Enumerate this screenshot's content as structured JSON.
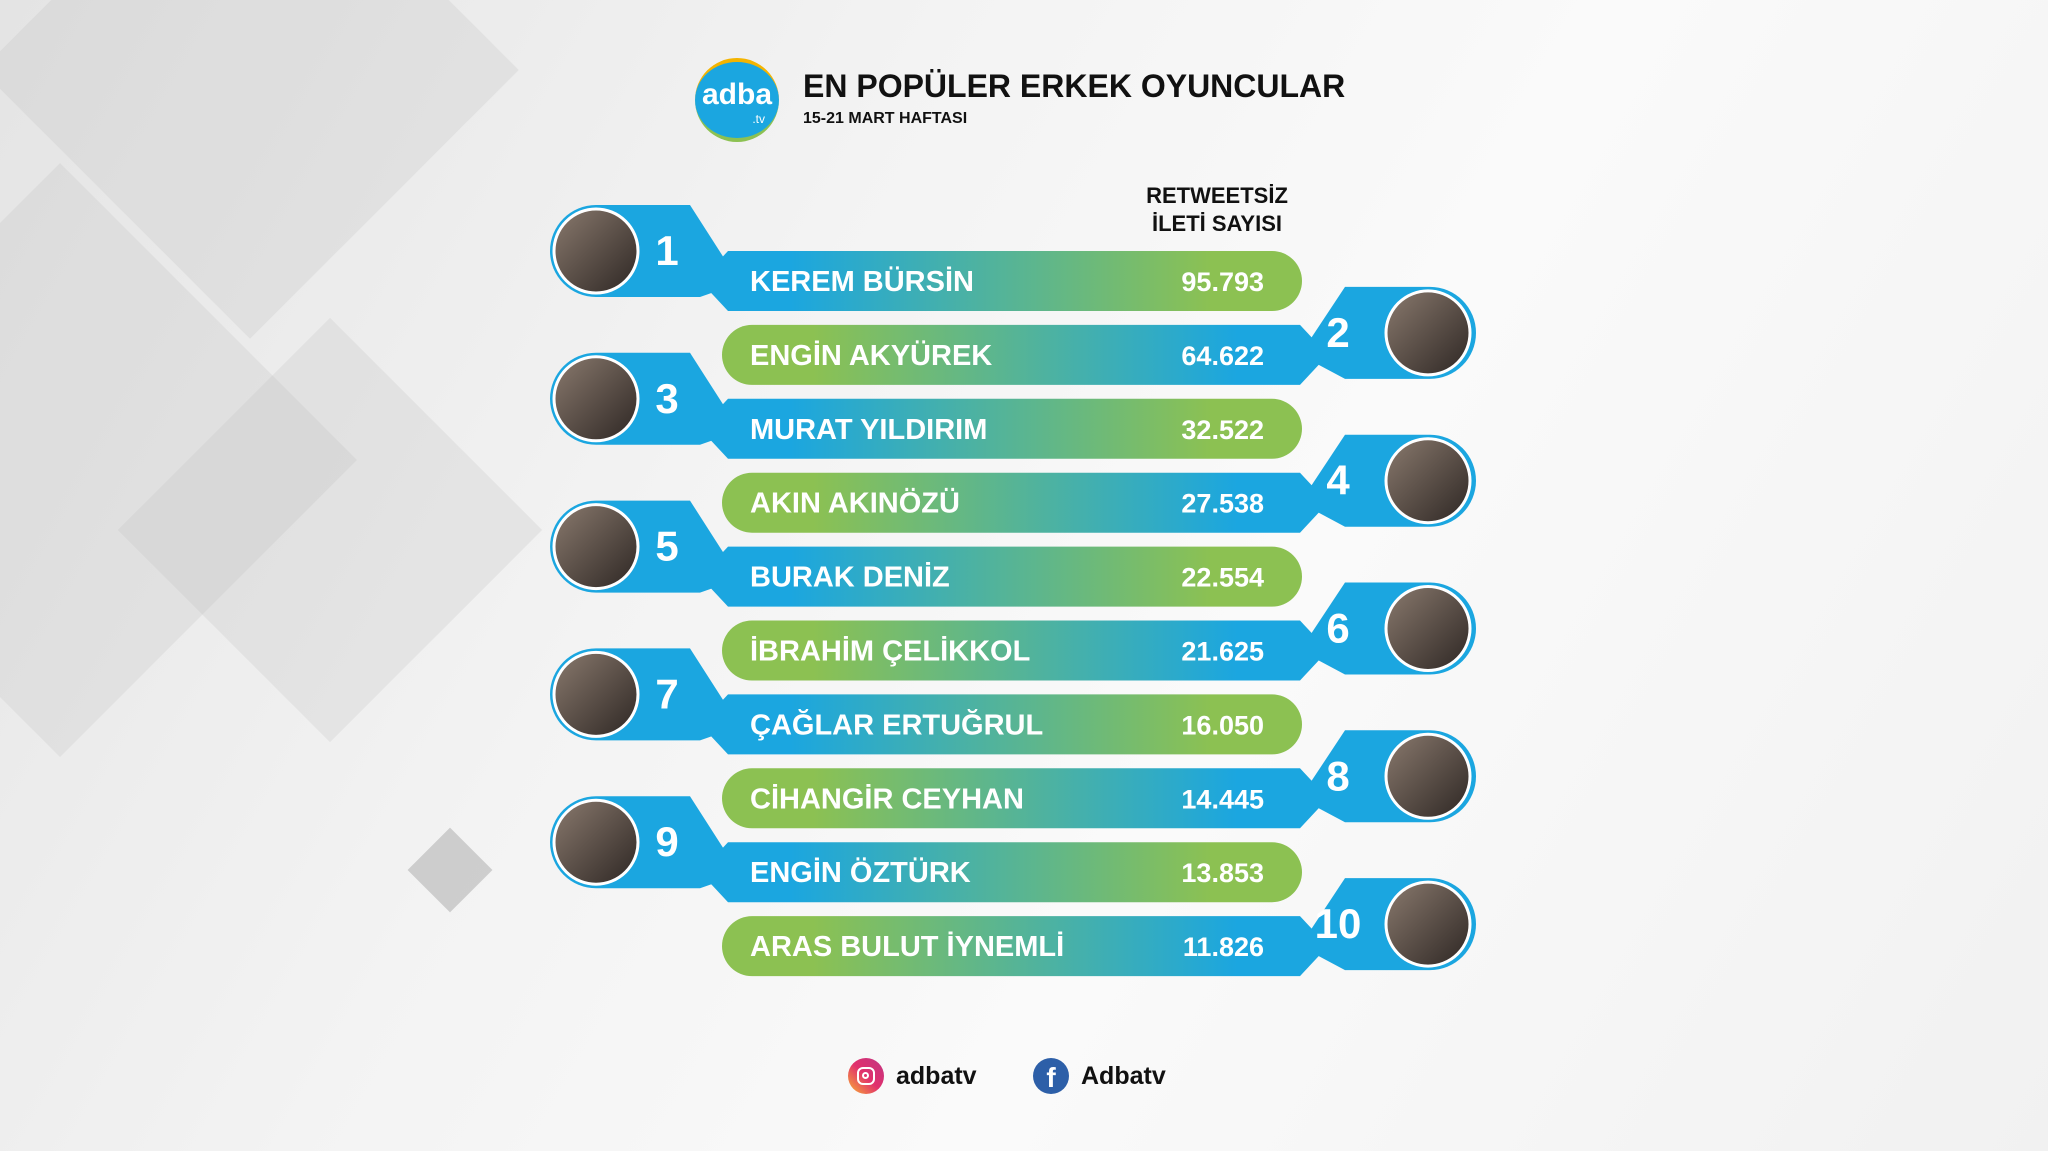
{
  "header": {
    "logo_text": "adba",
    "logo_suffix": ".tv",
    "title": "EN POPÜLER ERKEK OYUNCULAR",
    "subtitle": "15-21 MART HAFTASI",
    "column_header_line1": "RETWEETSİZ",
    "column_header_line2": "İLETİ SAYISI"
  },
  "colors": {
    "blue": "#1ba6e0",
    "green": "#8cc152"
  },
  "ranking": [
    {
      "rank": "1",
      "name": "KEREM BÜRSİN",
      "value": "95.793"
    },
    {
      "rank": "2",
      "name": "ENGİN AKYÜREK",
      "value": "64.622"
    },
    {
      "rank": "3",
      "name": "MURAT YILDIRIM",
      "value": "32.522"
    },
    {
      "rank": "4",
      "name": "AKIN AKINÖZÜ",
      "value": "27.538"
    },
    {
      "rank": "5",
      "name": "BURAK DENİZ",
      "value": "22.554"
    },
    {
      "rank": "6",
      "name": "İBRAHİM ÇELİKKOL",
      "value": "21.625"
    },
    {
      "rank": "7",
      "name": "ÇAĞLAR ERTUĞRUL",
      "value": "16.050"
    },
    {
      "rank": "8",
      "name": "CİHANGİR CEYHAN",
      "value": "14.445"
    },
    {
      "rank": "9",
      "name": "ENGİN ÖZTÜRK",
      "value": "13.853"
    },
    {
      "rank": "10",
      "name": "ARAS BULUT İYNEMLİ",
      "value": "11.826"
    }
  ],
  "footer": {
    "instagram_icon": "instagram-icon",
    "instagram": "adbatv",
    "facebook_icon": "facebook-icon",
    "facebook": "Adbatv"
  }
}
